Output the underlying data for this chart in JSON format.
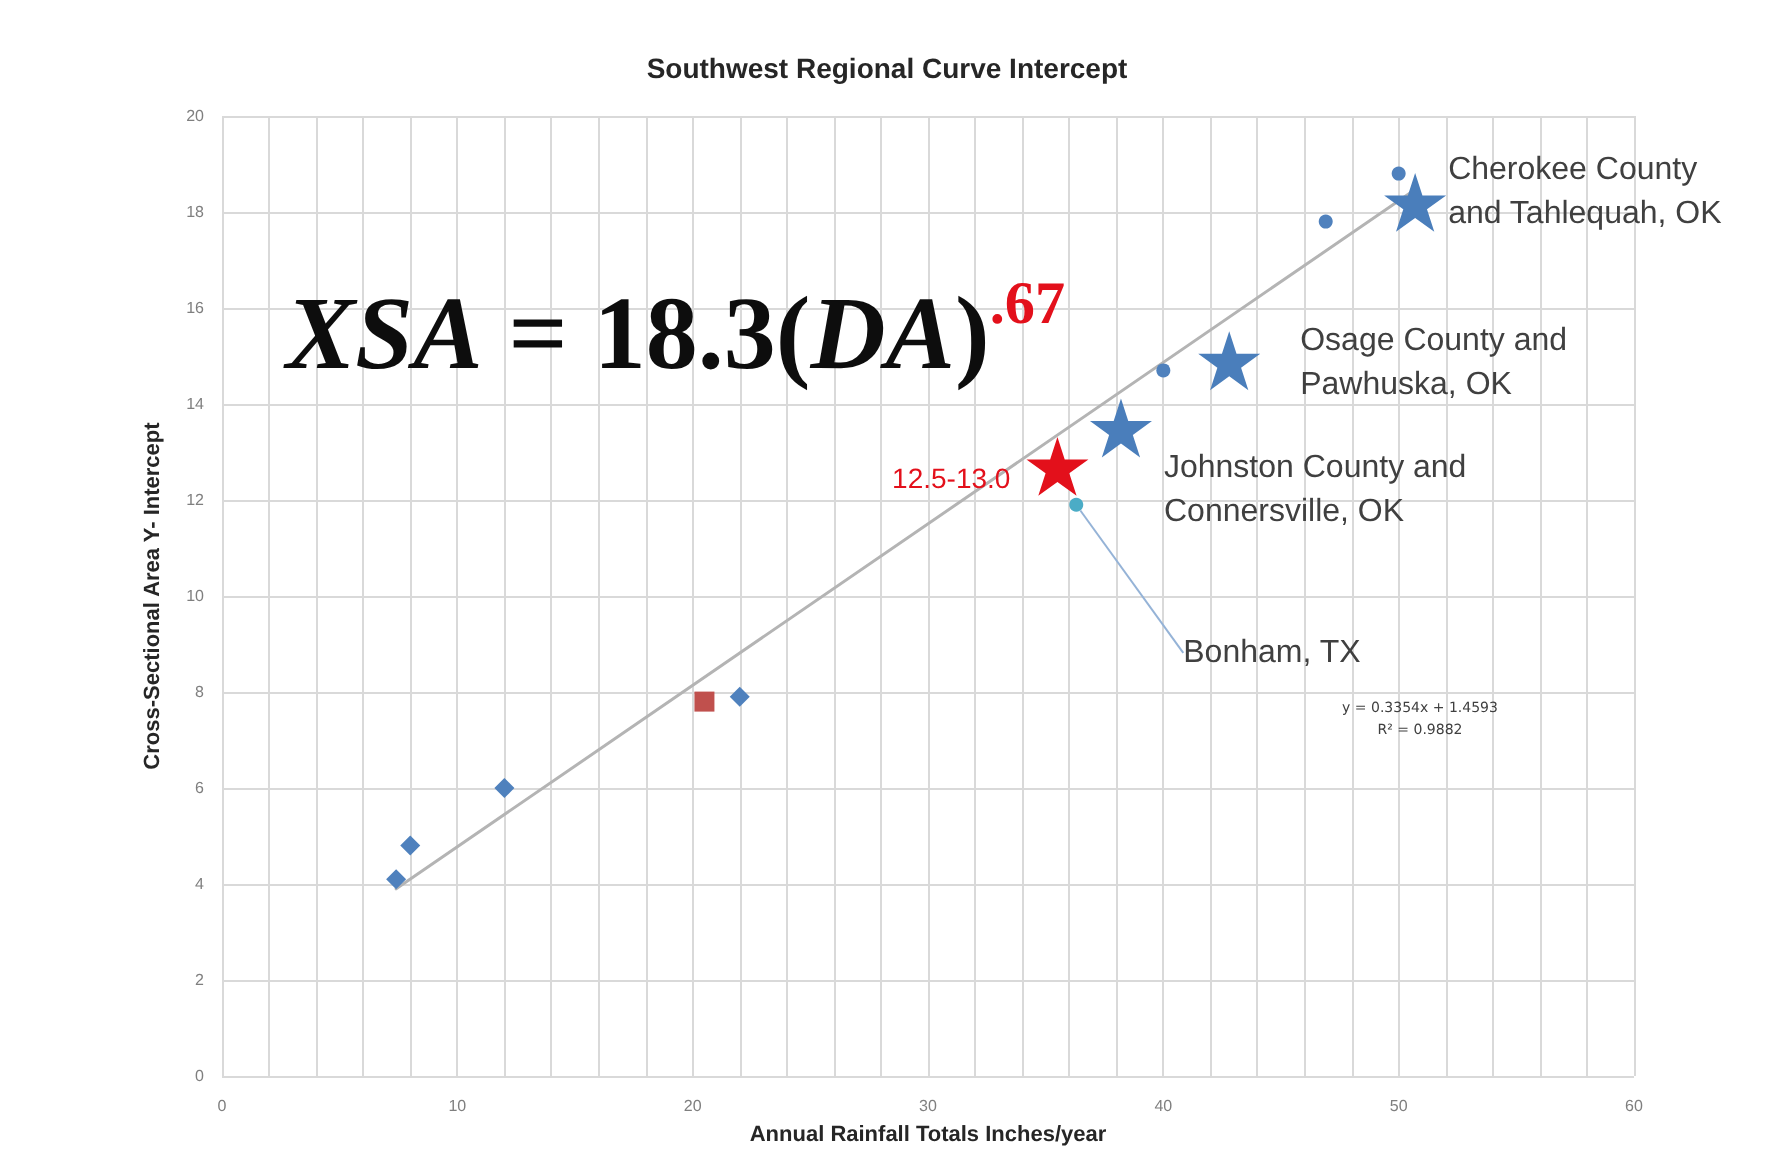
{
  "chart_data": {
    "type": "scatter",
    "title": "Southwest Regional Curve Intercept",
    "xlabel": "Annual Rainfall Totals Inches/year",
    "ylabel": "Cross-Sectional Area Y- Intercept",
    "xlim": [
      0,
      60
    ],
    "xticks": [
      0,
      {
        "value": 2,
        "label": null
      },
      {
        "value": 4,
        "label": null
      },
      {
        "value": 6,
        "label": null
      },
      {
        "value": 8,
        "label": null
      },
      10,
      {
        "value": 12,
        "label": null
      },
      {
        "value": 14,
        "label": null
      },
      {
        "value": 16,
        "label": null
      },
      {
        "value": 18,
        "label": null
      },
      20,
      {
        "value": 22,
        "label": null
      },
      {
        "value": 24,
        "label": null
      },
      {
        "value": 26,
        "label": null
      },
      {
        "value": 28,
        "label": null
      },
      30,
      {
        "value": 32,
        "label": null
      },
      {
        "value": 34,
        "label": null
      },
      {
        "value": 36,
        "label": null
      },
      {
        "value": 38,
        "label": null
      },
      40,
      {
        "value": 42,
        "label": null
      },
      {
        "value": 44,
        "label": null
      },
      {
        "value": 46,
        "label": null
      },
      {
        "value": 48,
        "label": null
      },
      50,
      {
        "value": 52,
        "label": null
      },
      {
        "value": 54,
        "label": null
      },
      {
        "value": 56,
        "label": null
      },
      {
        "value": 58,
        "label": null
      },
      60
    ],
    "ylim": [
      0,
      20
    ],
    "yticks": [
      0,
      2,
      4,
      6,
      8,
      10,
      12,
      14,
      16,
      18,
      20
    ],
    "grid": true,
    "series": [
      {
        "type": "line",
        "color": "#b4b4b4",
        "marker": "none",
        "x": [
          7.4,
          50.5
        ],
        "values": [
          3.9,
          18.4
        ]
      },
      {
        "color": "#4f81bd",
        "marker": "diamond",
        "x": [
          7.4,
          8,
          12,
          22
        ],
        "values": [
          4.1,
          4.8,
          6,
          7.9
        ]
      },
      {
        "color": "#4f81bd",
        "marker": "circle",
        "x": [
          50,
          46.9,
          40
        ],
        "values": [
          18.8,
          17.8,
          14.7
        ]
      },
      {
        "color": "#c0504d",
        "marker": "square",
        "x": [
          20.5
        ],
        "values": [
          7.8
        ]
      },
      {
        "name": "Cherokee County\nand Tahlequah, OK",
        "color": "#4a7ebb",
        "marker": "star",
        "x": [
          50.7
        ],
        "values": [
          18.2
        ]
      },
      {
        "name": "Osage County and\nPawhuska, OK",
        "color": "#4a7ebb",
        "marker": "star",
        "x": [
          42.8
        ],
        "values": [
          14.9
        ]
      },
      {
        "name": "Johnston County and\nConnersville, OK",
        "color": "#4a7ebb",
        "marker": "star",
        "x": [
          38.2
        ],
        "values": [
          13.5
        ]
      },
      {
        "color": "#e3101b",
        "marker": "star",
        "x": [
          35.5
        ],
        "values": [
          12.7
        ],
        "value_labels": [
          "12.5-13.0"
        ]
      },
      {
        "name": "Bonham, TX",
        "color": "#4bacc6",
        "marker": "circle",
        "x": [
          36.3
        ],
        "values": [
          11.9
        ]
      }
    ],
    "annotations": [
      "XSA = 18.3(DA)$^{.67}$",
      "y = 0.3354x + 1.4593\nR² = 0.9882"
    ]
  }
}
